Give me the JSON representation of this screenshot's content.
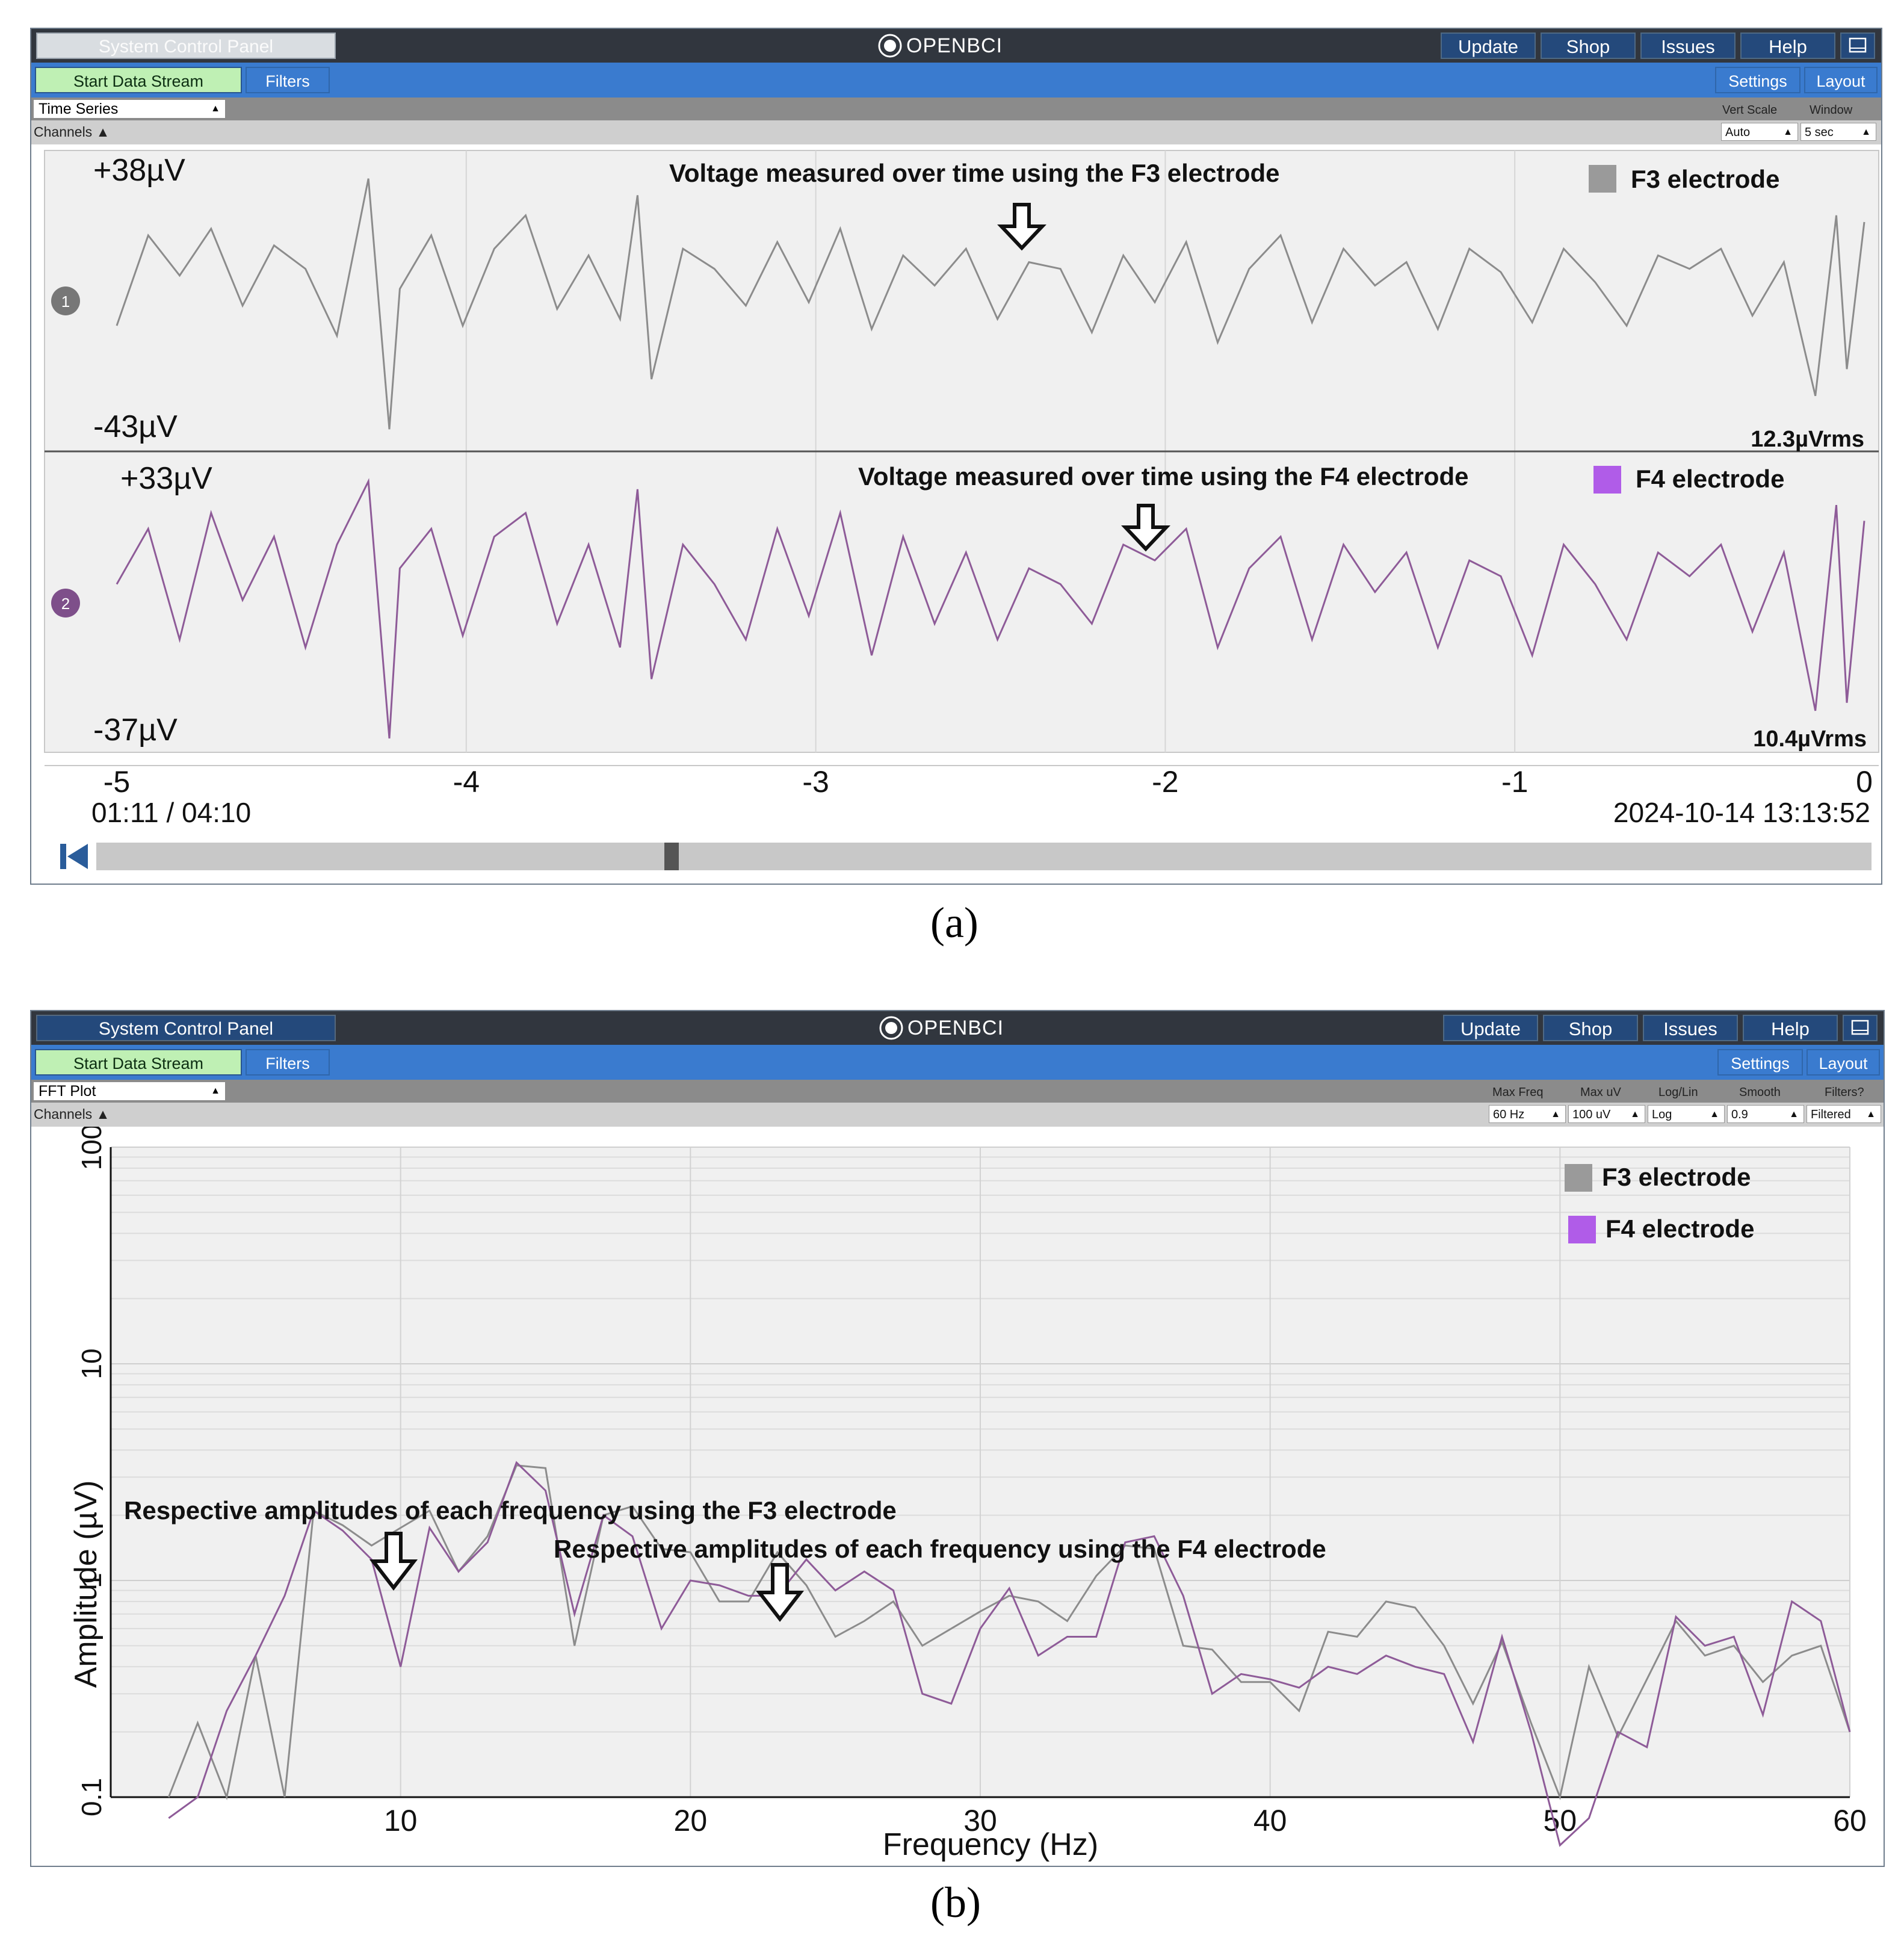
{
  "panels": [
    {
      "topbar": {
        "system_button": "System Control Panel",
        "logo": "OPENBCI",
        "update": "Update",
        "shop": "Shop",
        "issues": "Issues",
        "help": "Help"
      },
      "navbar": {
        "start": "Start Data Stream",
        "filters": "Filters",
        "settings": "Settings",
        "layout": "Layout"
      },
      "widget": {
        "selected": "Time Series"
      },
      "channels_label": "Channels",
      "controls": [
        {
          "label": "Vert Scale",
          "value": "Auto"
        },
        {
          "label": "Window",
          "value": "5 sec"
        }
      ],
      "channels": [
        {
          "number": "1",
          "max": "+38µV",
          "min": "-43µV",
          "rms": "12.3µVrms",
          "color": "#8c8c8c",
          "annotation": "Voltage measured over time using the F3 electrode",
          "legend": "F3 electrode"
        },
        {
          "number": "2",
          "max": "+33µV",
          "min": "-37µV",
          "rms": "10.4µVrms",
          "color": "#8e5b98",
          "annotation": "Voltage measured over time using the F4 electrode",
          "legend": "F4 electrode"
        }
      ],
      "x_ticks": [
        "-5",
        "-4",
        "-3",
        "-2",
        "-1",
        "0"
      ],
      "playback_time": "01:11 / 04:10",
      "timestamp": "2024-10-14 13:13:52",
      "playback_position": 0.32,
      "caption": "(a)"
    },
    {
      "topbar": {
        "system_button": "System Control Panel",
        "logo": "OPENBCI",
        "update": "Update",
        "shop": "Shop",
        "issues": "Issues",
        "help": "Help"
      },
      "navbar": {
        "start": "Start Data Stream",
        "filters": "Filters",
        "settings": "Settings",
        "layout": "Layout"
      },
      "widget": {
        "selected": "FFT Plot"
      },
      "channels_label": "Channels",
      "controls": [
        {
          "label": "Max Freq",
          "value": "60 Hz"
        },
        {
          "label": "Max uV",
          "value": "100 uV"
        },
        {
          "label": "Log/Lin",
          "value": "Log"
        },
        {
          "label": "Smooth",
          "value": "0.9"
        },
        {
          "label": "Filters?",
          "value": "Filtered"
        }
      ],
      "annotations": [
        "Respective amplitudes of each frequency using the F3 electrode",
        "Respective amplitudes of each frequency using the F4 electrode"
      ],
      "caption": "(b)"
    }
  ],
  "chart_data": [
    {
      "type": "line",
      "title": "",
      "xlabel": "",
      "ylabel": "",
      "xlim": [
        -5,
        0
      ],
      "x_ticks": [
        -5,
        -4,
        -3,
        -2,
        -1,
        0
      ],
      "series": [
        {
          "name": "F3 electrode",
          "color": "#8c8c8c",
          "ylim": [
            -43,
            38
          ],
          "x": [
            -5.0,
            -4.91,
            -4.82,
            -4.73,
            -4.64,
            -4.55,
            -4.46,
            -4.37,
            -4.28,
            -4.22,
            -4.19,
            -4.1,
            -4.01,
            -3.92,
            -3.83,
            -3.74,
            -3.65,
            -3.56,
            -3.51,
            -3.47,
            -3.38,
            -3.29,
            -3.2,
            -3.11,
            -3.02,
            -2.93,
            -2.84,
            -2.75,
            -2.66,
            -2.57,
            -2.48,
            -2.39,
            -2.3,
            -2.21,
            -2.12,
            -2.03,
            -1.94,
            -1.85,
            -1.76,
            -1.67,
            -1.58,
            -1.49,
            -1.4,
            -1.31,
            -1.22,
            -1.13,
            -1.04,
            -0.95,
            -0.86,
            -0.77,
            -0.68,
            -0.59,
            -0.5,
            -0.41,
            -0.32,
            -0.23,
            -0.14,
            -0.08,
            -0.05,
            0.0
          ],
          "y": [
            -9,
            18,
            6,
            20,
            -3,
            15,
            8,
            -12,
            35,
            -40,
            2,
            18,
            -9,
            14,
            24,
            -4,
            12,
            -7,
            30,
            -25,
            14,
            8,
            -3,
            16,
            -2,
            20,
            -10,
            12,
            3,
            14,
            -7,
            10,
            8,
            -11,
            12,
            -2,
            16,
            -14,
            8,
            18,
            -8,
            14,
            3,
            10,
            -10,
            14,
            7,
            -8,
            14,
            4,
            -9,
            12,
            8,
            14,
            -6,
            10,
            -30,
            24,
            -22,
            22
          ]
        },
        {
          "name": "F4 electrode",
          "color": "#8e5b98",
          "ylim": [
            -37,
            33
          ],
          "x": [
            -5.0,
            -4.91,
            -4.82,
            -4.73,
            -4.64,
            -4.55,
            -4.46,
            -4.37,
            -4.28,
            -4.22,
            -4.19,
            -4.1,
            -4.01,
            -3.92,
            -3.83,
            -3.74,
            -3.65,
            -3.56,
            -3.51,
            -3.47,
            -3.38,
            -3.29,
            -3.2,
            -3.11,
            -3.02,
            -2.93,
            -2.84,
            -2.75,
            -2.66,
            -2.57,
            -2.48,
            -2.39,
            -2.3,
            -2.21,
            -2.12,
            -2.03,
            -1.94,
            -1.85,
            -1.76,
            -1.67,
            -1.58,
            -1.49,
            -1.4,
            -1.31,
            -1.22,
            -1.13,
            -1.04,
            -0.95,
            -0.86,
            -0.77,
            -0.68,
            -0.59,
            -0.5,
            -0.41,
            -0.32,
            -0.23,
            -0.14,
            -0.08,
            -0.05,
            0.0
          ],
          "y": [
            4,
            18,
            -10,
            22,
            0,
            16,
            -12,
            14,
            30,
            -35,
            8,
            18,
            -9,
            16,
            22,
            -6,
            14,
            -12,
            28,
            -20,
            14,
            4,
            -10,
            18,
            -4,
            22,
            -14,
            16,
            -6,
            12,
            -10,
            8,
            4,
            -6,
            14,
            10,
            18,
            -12,
            8,
            16,
            -10,
            14,
            2,
            12,
            -12,
            10,
            6,
            -14,
            14,
            4,
            -10,
            12,
            6,
            14,
            -8,
            12,
            -28,
            24,
            -26,
            20
          ]
        }
      ]
    },
    {
      "type": "line",
      "title": "",
      "xlabel": "Frequency (Hz)",
      "ylabel": "Amplitude (µV)",
      "xlim": [
        0,
        60
      ],
      "ylim": [
        0.1,
        100
      ],
      "y_scale": "log",
      "x_ticks": [
        10,
        20,
        30,
        40,
        50,
        60
      ],
      "y_ticks": [
        0.1,
        1,
        10,
        100
      ],
      "legend_position": "top-right",
      "series": [
        {
          "name": "F3 electrode",
          "color": "#8c8c8c",
          "x": [
            2,
            3,
            4,
            5,
            6,
            7,
            8,
            9,
            10,
            11,
            12,
            13,
            14,
            15,
            16,
            17,
            18,
            19,
            20,
            21,
            22,
            23,
            24,
            25,
            26,
            27,
            28,
            29,
            30,
            31,
            32,
            33,
            34,
            35,
            36,
            37,
            38,
            39,
            40,
            41,
            42,
            43,
            44,
            45,
            46,
            47,
            48,
            49,
            50,
            51,
            52,
            53,
            54,
            55,
            56,
            57,
            58,
            59,
            60
          ],
          "y": [
            0.1,
            0.22,
            0.1,
            0.45,
            0.1,
            2.1,
            1.8,
            1.45,
            1.75,
            2.1,
            1.1,
            1.6,
            3.4,
            3.3,
            0.5,
            2.0,
            2.2,
            1.4,
            1.35,
            0.8,
            0.8,
            1.35,
            0.95,
            0.55,
            0.65,
            0.8,
            0.5,
            0.6,
            0.72,
            0.85,
            0.8,
            0.65,
            1.05,
            1.45,
            1.4,
            0.5,
            0.48,
            0.34,
            0.34,
            0.25,
            0.58,
            0.55,
            0.8,
            0.75,
            0.5,
            0.27,
            0.52,
            0.22,
            0.1,
            0.4,
            0.19,
            0.35,
            0.65,
            0.45,
            0.5,
            0.34,
            0.45,
            0.5,
            0.2
          ]
        },
        {
          "name": "F4 electrode",
          "color": "#8e5b98",
          "x": [
            2,
            3,
            4,
            5,
            6,
            7,
            8,
            9,
            10,
            11,
            12,
            13,
            14,
            15,
            16,
            17,
            18,
            19,
            20,
            21,
            22,
            23,
            24,
            25,
            26,
            27,
            28,
            29,
            30,
            31,
            32,
            33,
            34,
            35,
            36,
            37,
            38,
            39,
            40,
            41,
            42,
            43,
            44,
            45,
            46,
            47,
            48,
            49,
            50,
            51,
            52,
            53,
            54,
            55,
            56,
            57,
            58,
            59,
            60
          ],
          "y": [
            0.08,
            0.1,
            0.25,
            0.45,
            0.85,
            2.1,
            1.7,
            1.25,
            0.4,
            1.75,
            1.1,
            1.5,
            3.5,
            2.6,
            0.7,
            2.0,
            1.6,
            0.6,
            1.0,
            0.95,
            0.85,
            0.85,
            1.25,
            0.9,
            1.1,
            0.9,
            0.3,
            0.27,
            0.6,
            0.92,
            0.45,
            0.55,
            0.55,
            1.5,
            1.6,
            0.85,
            0.3,
            0.37,
            0.35,
            0.32,
            0.4,
            0.37,
            0.45,
            0.4,
            0.37,
            0.18,
            0.55,
            0.2,
            0.05,
            0.08,
            0.2,
            0.17,
            0.68,
            0.5,
            0.55,
            0.24,
            0.8,
            0.65,
            0.2
          ]
        }
      ]
    }
  ]
}
